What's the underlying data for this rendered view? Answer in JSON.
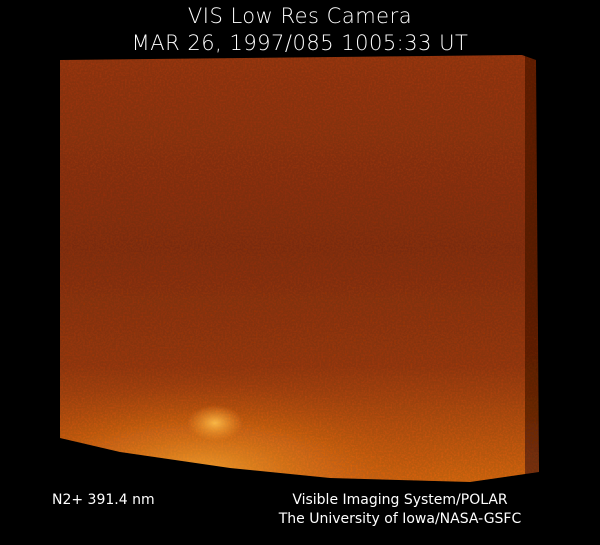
{
  "header": {
    "title": "VIS Low Res Camera",
    "subtitle": "MAR 26, 1997/085 1005:33 UT"
  },
  "footer": {
    "band": "N2+ 391.4 nm",
    "credit_line1": "Visible Imaging System/POLAR",
    "credit_line2": "The University of Iowa/NASA-GSFC"
  },
  "colors": {
    "background": "#000000",
    "image_dark": "#5a1a06",
    "image_mid": "#9a3f0c",
    "image_bright": "#f0a030"
  }
}
